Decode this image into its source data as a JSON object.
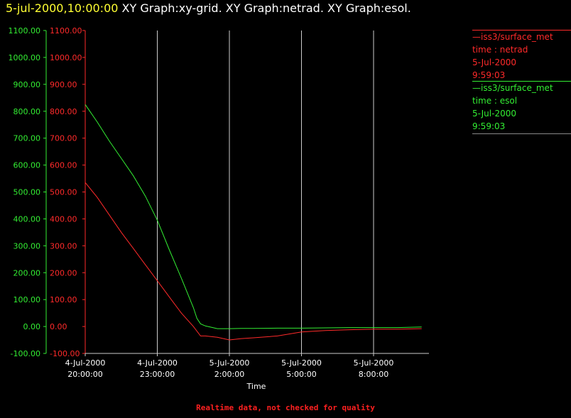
{
  "header": {
    "timestamp": "5-jul-2000,10:00:00",
    "graphs": "XY Graph:xy-grid.  XY Graph:netrad.  XY Graph:esol."
  },
  "legend": [
    {
      "line1": "iss3/surface_met",
      "line2": "time : netrad",
      "line3": "5-Jul-2000",
      "line4": "9:59:03",
      "color": "#ff2a2a"
    },
    {
      "line1": "iss3/surface_met",
      "line2": "time : esol",
      "line3": "5-Jul-2000",
      "line4": "9:59:03",
      "color": "#33ee33"
    }
  ],
  "footer": "Realtime data, not checked for quality",
  "chart_data": {
    "type": "line",
    "xlabel": "Time",
    "ylim": [
      -100,
      1100
    ],
    "xlim_hours": [
      0,
      14
    ],
    "y_ticks": [
      "1100.00",
      "1000.00",
      "900.00",
      "800.00",
      "700.00",
      "600.00",
      "500.00",
      "400.00",
      "300.00",
      "200.00",
      "100.00",
      "0.00",
      "-100.00"
    ],
    "x_ticks": [
      {
        "date": "4-Jul-2000",
        "time": "20:00:00",
        "hours": 0
      },
      {
        "date": "4-Jul-2000",
        "time": "23:00:00",
        "hours": 3
      },
      {
        "date": "5-Jul-2000",
        "time": "2:00:00",
        "hours": 6
      },
      {
        "date": "5-Jul-2000",
        "time": "5:00:00",
        "hours": 9
      },
      {
        "date": "5-Jul-2000",
        "time": "8:00:00",
        "hours": 12
      }
    ],
    "series": [
      {
        "name": "iss3/surface_met time : esol",
        "color": "#33ee33",
        "x": [
          0,
          0.5,
          1,
          1.5,
          2,
          2.5,
          3,
          3.5,
          4,
          4.5,
          4.65,
          4.8,
          5,
          5.5,
          6,
          6.5,
          7,
          8,
          9,
          10,
          11,
          12,
          13,
          14
        ],
        "y": [
          825,
          760,
          690,
          625,
          560,
          485,
          395,
          285,
          180,
          70,
          30,
          10,
          2,
          -8,
          -8,
          -7,
          -7,
          -6,
          -6,
          -5,
          -4,
          -4,
          -4,
          -2
        ]
      },
      {
        "name": "iss3/surface_met time : netrad",
        "color": "#ff2a2a",
        "x": [
          0,
          0.5,
          1,
          1.5,
          2,
          2.5,
          3,
          3.5,
          4,
          4.5,
          4.8,
          5,
          5.5,
          6,
          6.5,
          7,
          8,
          9,
          10,
          11,
          12,
          13,
          14
        ],
        "y": [
          535,
          480,
          415,
          350,
          290,
          230,
          170,
          110,
          50,
          0,
          -35,
          -35,
          -40,
          -50,
          -45,
          -42,
          -35,
          -20,
          -15,
          -12,
          -10,
          -10,
          -8
        ]
      }
    ]
  }
}
